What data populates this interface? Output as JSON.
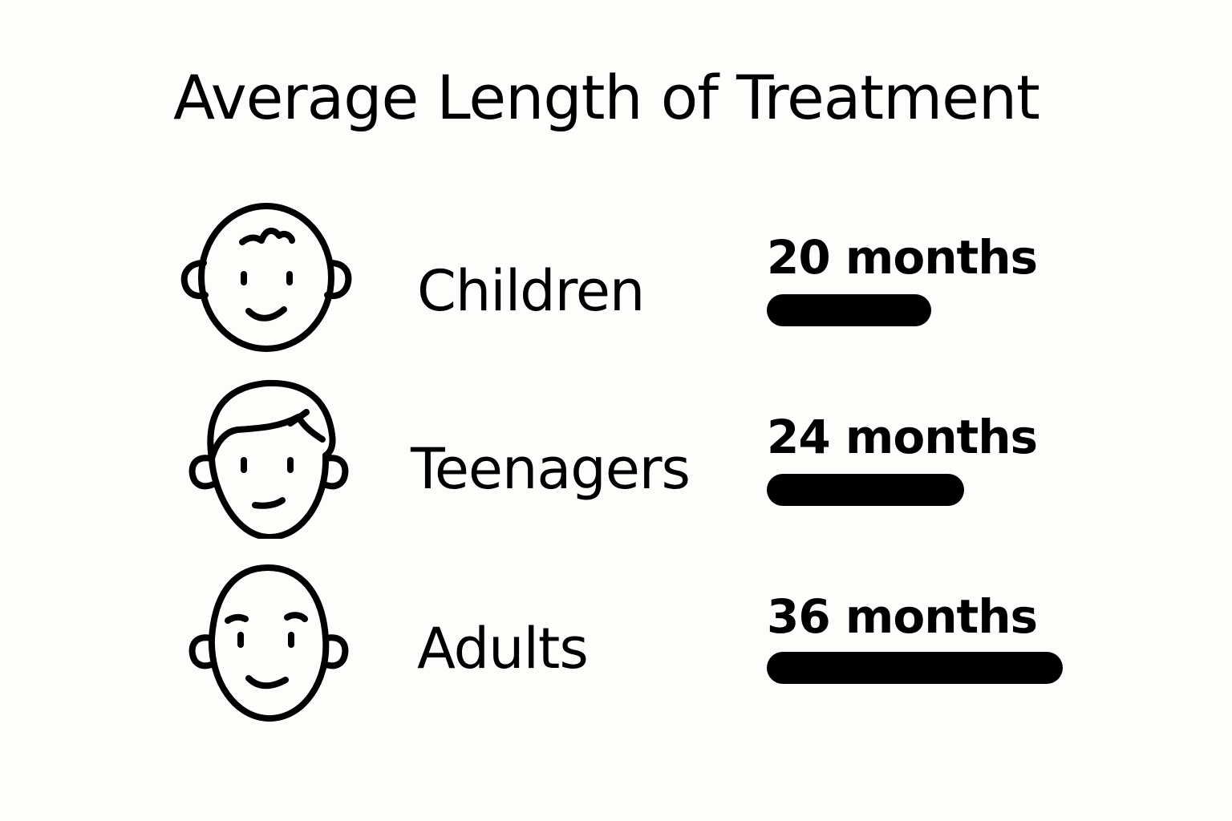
{
  "chart_data": {
    "type": "bar",
    "title": "Average Length of Treatment",
    "categories": [
      "Children",
      "Teenagers",
      "Adults"
    ],
    "values": [
      20,
      24,
      36
    ],
    "unit": "months",
    "value_labels": [
      "20 months",
      "24 months",
      "36 months"
    ],
    "icons": [
      "child-face-icon",
      "teenager-face-icon",
      "adult-face-icon"
    ],
    "bar_color": "#000000"
  }
}
